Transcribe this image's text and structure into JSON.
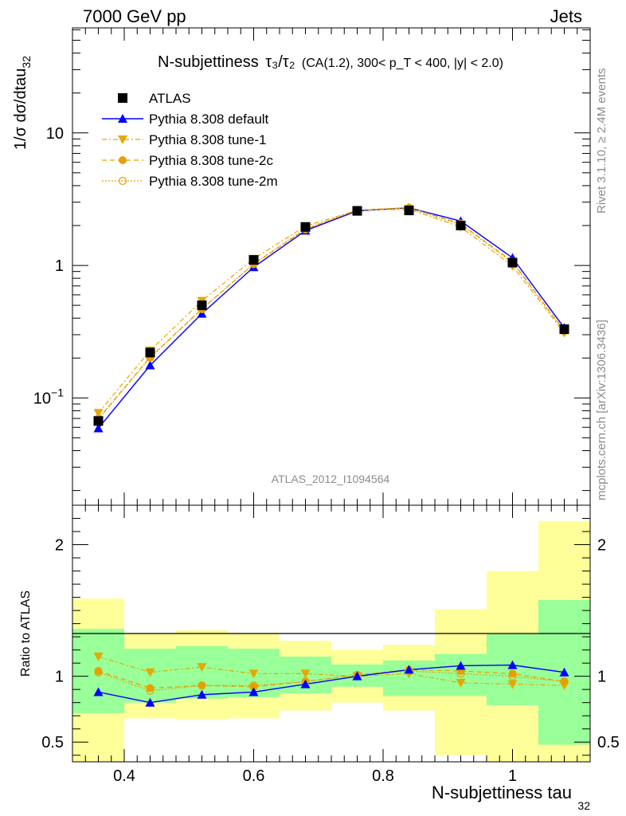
{
  "header": {
    "left": "7000 GeV pp",
    "right": "Jets"
  },
  "side_text": {
    "top": "Rivet 3.1.10, ≥ 2.4M events",
    "bottom": "mcplots.cern.ch [arXiv:1306.3436]"
  },
  "watermark": "ATLAS_2012_I1094564",
  "chart_data": {
    "type": "line",
    "title": {
      "main": "N-subjettiness",
      "tau_ratio": "τ₃/τ₂",
      "conditions": "(CA(1.2), 300< p_T < 400, |y| < 2.0)"
    },
    "xlabel": "N-subjettiness tau",
    "xlabel_sub": "32",
    "ylabel": "1/σ dσ/dtau",
    "ylabel_sub": "32",
    "ratio_ylabel": "Ratio to ATLAS",
    "xlim": [
      0.32,
      1.12
    ],
    "ylim": [
      0.0155,
      62
    ],
    "yscale": "log",
    "ratio_ylim": [
      0.35,
      2.3
    ],
    "x_ticks": [
      "0.4",
      "0.6",
      "0.8",
      "1"
    ],
    "y_ticks": [
      "10",
      "1",
      "10^-1"
    ],
    "ratio_ticks": [
      "2",
      "1",
      "0.5"
    ],
    "bins": [
      0.32,
      0.4,
      0.48,
      0.56,
      0.64,
      0.72,
      0.8,
      0.88,
      0.96,
      1.04,
      1.12
    ],
    "x": [
      0.36,
      0.44,
      0.52,
      0.6,
      0.68,
      0.76,
      0.84,
      0.92,
      1.0,
      1.08
    ],
    "legend": {
      "placement": "top-left"
    },
    "series": [
      {
        "name": "ATLAS",
        "marker": "square",
        "color": "#000000",
        "values": [
          0.067,
          0.22,
          0.5,
          1.1,
          1.95,
          2.58,
          2.6,
          2.0,
          1.05,
          0.33
        ]
      },
      {
        "name": "Pythia 8.308 default",
        "marker": "triangle-up",
        "color": "#0000ff",
        "values": [
          0.059,
          0.176,
          0.432,
          0.97,
          1.83,
          2.58,
          2.72,
          2.16,
          1.14,
          0.338
        ]
      },
      {
        "name": "Pythia 8.308 tune-1",
        "marker": "triangle-down",
        "color": "#e6a800",
        "values": [
          0.077,
          0.228,
          0.54,
          1.12,
          1.98,
          2.6,
          2.66,
          1.95,
          0.99,
          0.31
        ]
      },
      {
        "name": "Pythia 8.308 tune-2c",
        "marker": "circle",
        "color": "#e6a000",
        "values": [
          0.07,
          0.203,
          0.47,
          1.02,
          1.87,
          2.62,
          2.73,
          2.07,
          1.07,
          0.322
        ]
      },
      {
        "name": "Pythia 8.308 tune-2m",
        "marker": "circle-open",
        "color": "#e6a000",
        "values": [
          0.069,
          0.201,
          0.468,
          1.03,
          1.89,
          2.62,
          2.7,
          2.03,
          1.05,
          0.318
        ]
      }
    ],
    "ratio_series": [
      {
        "name": "Pythia 8.308 default",
        "values": [
          0.88,
          0.8,
          0.86,
          0.88,
          0.94,
          1.0,
          1.05,
          1.08,
          1.085,
          1.03
        ]
      },
      {
        "name": "Pythia 8.308 tune-1",
        "values": [
          1.15,
          1.03,
          1.07,
          1.02,
          1.02,
          1.0,
          1.02,
          0.95,
          0.94,
          0.93
        ]
      },
      {
        "name": "Pythia 8.308 tune-2c",
        "values": [
          1.04,
          0.91,
          0.93,
          0.92,
          0.96,
          1.01,
          1.05,
          1.04,
          1.02,
          0.96
        ]
      },
      {
        "name": "Pythia 8.308 tune-2m",
        "values": [
          1.03,
          0.89,
          0.93,
          0.93,
          0.96,
          1.01,
          1.04,
          1.02,
          1.0,
          0.96
        ]
      }
    ],
    "uncertainty_bands": {
      "inner_color": "#99ff99",
      "outer_color": "#ffff99",
      "inner": [
        [
          0.72,
          1.36
        ],
        [
          0.8,
          1.21
        ],
        [
          0.83,
          1.23
        ],
        [
          0.84,
          1.21
        ],
        [
          0.87,
          1.15
        ],
        [
          0.92,
          1.09
        ],
        [
          0.85,
          1.12
        ],
        [
          0.85,
          1.17
        ],
        [
          0.78,
          1.32
        ],
        [
          0.48,
          1.58
        ]
      ],
      "outer": [
        [
          0.3,
          1.59
        ],
        [
          0.68,
          1.33
        ],
        [
          0.67,
          1.35
        ],
        [
          0.68,
          1.33
        ],
        [
          0.74,
          1.27
        ],
        [
          0.8,
          1.2
        ],
        [
          0.74,
          1.24
        ],
        [
          0.4,
          1.51
        ],
        [
          0.32,
          1.8
        ],
        [
          0.3,
          2.18
        ]
      ]
    }
  }
}
